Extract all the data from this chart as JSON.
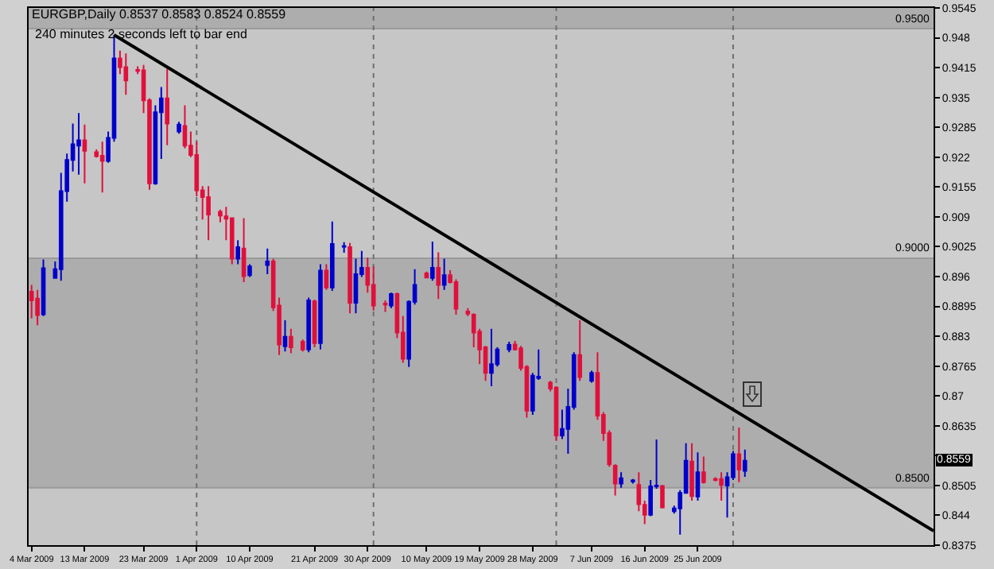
{
  "chart_data": {
    "type": "candlestick",
    "title": "EURGBP,Daily 0.8537 0.8583 0.8524 0.8559",
    "subtitle": "240 minutes 2 seconds left to bar end",
    "series": [
      {
        "x": [
          "2009-03-04",
          "2009-03-05",
          "2009-03-06",
          "2009-03-08",
          "2009-03-09",
          "2009-03-10",
          "2009-03-11",
          "2009-03-12",
          "2009-03-13",
          "2009-03-15",
          "2009-03-16",
          "2009-03-17",
          "2009-03-18",
          "2009-03-19",
          "2009-03-20",
          "2009-03-22",
          "2009-03-23",
          "2009-03-24",
          "2009-03-25",
          "2009-03-26",
          "2009-03-27",
          "2009-03-29",
          "2009-03-30",
          "2009-03-31",
          "2009-04-01",
          "2009-04-02",
          "2009-04-03",
          "2009-04-05",
          "2009-04-06",
          "2009-04-07",
          "2009-04-08",
          "2009-04-09",
          "2009-04-10",
          "2009-04-13",
          "2009-04-14",
          "2009-04-15",
          "2009-04-16",
          "2009-04-17",
          "2009-04-19",
          "2009-04-20",
          "2009-04-21",
          "2009-04-22",
          "2009-04-23",
          "2009-04-24",
          "2009-04-26",
          "2009-04-27",
          "2009-04-28",
          "2009-04-29",
          "2009-04-30",
          "2009-05-01",
          "2009-05-03",
          "2009-05-04",
          "2009-05-05",
          "2009-05-06",
          "2009-05-07",
          "2009-05-08",
          "2009-05-10",
          "2009-05-11",
          "2009-05-12",
          "2009-05-13",
          "2009-05-14",
          "2009-05-15",
          "2009-05-17",
          "2009-05-18",
          "2009-05-19",
          "2009-05-20",
          "2009-05-21",
          "2009-05-22",
          "2009-05-24",
          "2009-05-25",
          "2009-05-26",
          "2009-05-27",
          "2009-05-28",
          "2009-05-29",
          "2009-05-31",
          "2009-06-01",
          "2009-06-02",
          "2009-06-03",
          "2009-06-04",
          "2009-06-05",
          "2009-06-07",
          "2009-06-08",
          "2009-06-09",
          "2009-06-10",
          "2009-06-11",
          "2009-06-12",
          "2009-06-14",
          "2009-06-15",
          "2009-06-16",
          "2009-06-17",
          "2009-06-18",
          "2009-06-19",
          "2009-06-21",
          "2009-06-22",
          "2009-06-23",
          "2009-06-24",
          "2009-06-25",
          "2009-06-26",
          "2009-06-28",
          "2009-06-29",
          "2009-06-30",
          "2009-07-01",
          "2009-07-02",
          "2009-07-03"
        ],
        "ohlc": [
          [
            0.8927,
            0.8942,
            0.8869,
            0.8908
          ],
          [
            0.8912,
            0.8931,
            0.8854,
            0.8876
          ],
          [
            0.8878,
            0.8997,
            0.8874,
            0.8978
          ],
          [
            0.8957,
            0.8993,
            0.8956,
            0.8976
          ],
          [
            0.8976,
            0.9186,
            0.8951,
            0.9146
          ],
          [
            0.9146,
            0.9228,
            0.9123,
            0.9214
          ],
          [
            0.9214,
            0.9293,
            0.9189,
            0.9248
          ],
          [
            0.9245,
            0.9316,
            0.9182,
            0.9257
          ],
          [
            0.9257,
            0.9291,
            0.9163,
            0.9234
          ],
          [
            0.9231,
            0.9237,
            0.9219,
            0.9222
          ],
          [
            0.9223,
            0.9254,
            0.9143,
            0.9212
          ],
          [
            0.9212,
            0.9276,
            0.9208,
            0.9262
          ],
          [
            0.9262,
            0.9486,
            0.9254,
            0.9435
          ],
          [
            0.9435,
            0.9452,
            0.9401,
            0.9416
          ],
          [
            0.9416,
            0.9446,
            0.9356,
            0.9387
          ],
          [
            0.941,
            0.9418,
            0.9401,
            0.9408
          ],
          [
            0.9409,
            0.9421,
            0.9316,
            0.9344
          ],
          [
            0.9344,
            0.9348,
            0.9149,
            0.9163
          ],
          [
            0.9163,
            0.9333,
            0.916,
            0.9318
          ],
          [
            0.9318,
            0.9373,
            0.9216,
            0.9348
          ],
          [
            0.9348,
            0.9412,
            0.9246,
            0.9293
          ],
          [
            0.9276,
            0.9297,
            0.9271,
            0.9291
          ],
          [
            0.9288,
            0.9333,
            0.9239,
            0.9245
          ],
          [
            0.9245,
            0.9276,
            0.922,
            0.9225
          ],
          [
            0.9225,
            0.9254,
            0.9135,
            0.9148
          ],
          [
            0.9148,
            0.9157,
            0.9084,
            0.9133
          ],
          [
            0.9133,
            0.9157,
            0.9039,
            0.9095
          ],
          [
            0.9101,
            0.9106,
            0.9078,
            0.9093
          ],
          [
            0.9091,
            0.9112,
            0.9039,
            0.9086
          ],
          [
            0.9087,
            0.9089,
            0.8987,
            0.8999
          ],
          [
            0.8999,
            0.9039,
            0.8987,
            0.9024
          ],
          [
            0.9021,
            0.9087,
            0.8948,
            0.8961
          ],
          [
            0.8963,
            0.8987,
            0.8959,
            0.8982
          ],
          [
            0.8985,
            0.9021,
            0.8965,
            0.8993
          ],
          [
            0.8993,
            0.8999,
            0.8885,
            0.8893
          ],
          [
            0.8897,
            0.8914,
            0.8789,
            0.8812
          ],
          [
            0.8808,
            0.8865,
            0.8797,
            0.8829
          ],
          [
            0.8829,
            0.8846,
            0.8793,
            0.8806
          ],
          [
            0.8818,
            0.8823,
            0.8797,
            0.8801
          ],
          [
            0.8801,
            0.8914,
            0.8795,
            0.8908
          ],
          [
            0.8906,
            0.891,
            0.8806,
            0.8815
          ],
          [
            0.8815,
            0.8987,
            0.8801,
            0.8973
          ],
          [
            0.8973,
            0.8987,
            0.8931,
            0.8936
          ],
          [
            0.8936,
            0.908,
            0.8929,
            0.9031
          ],
          [
            0.9025,
            0.9035,
            0.9012,
            0.9026
          ],
          [
            0.9024,
            0.9033,
            0.888,
            0.8903
          ],
          [
            0.8903,
            0.8999,
            0.888,
            0.8965
          ],
          [
            0.8965,
            0.9016,
            0.8959,
            0.8979
          ],
          [
            0.8979,
            0.9001,
            0.8925,
            0.8942
          ],
          [
            0.8942,
            0.8982,
            0.8886,
            0.8897
          ],
          [
            0.8901,
            0.8908,
            0.8883,
            0.8899
          ],
          [
            0.8897,
            0.8925,
            0.8891,
            0.8922
          ],
          [
            0.8922,
            0.8925,
            0.8826,
            0.8838
          ],
          [
            0.8838,
            0.8874,
            0.8772,
            0.8781
          ],
          [
            0.8781,
            0.8908,
            0.8763,
            0.8905
          ],
          [
            0.8905,
            0.8976,
            0.8899,
            0.8942
          ],
          [
            0.8967,
            0.8971,
            0.8956,
            0.8958
          ],
          [
            0.8957,
            0.9036,
            0.8951,
            0.8979
          ],
          [
            0.8979,
            0.9013,
            0.8911,
            0.8942
          ],
          [
            0.8942,
            0.8999,
            0.8931,
            0.8963
          ],
          [
            0.8963,
            0.8974,
            0.8945,
            0.8948
          ],
          [
            0.8948,
            0.8954,
            0.8877,
            0.889
          ],
          [
            0.8884,
            0.8891,
            0.8874,
            0.8879
          ],
          [
            0.8877,
            0.888,
            0.8806,
            0.8838
          ],
          [
            0.884,
            0.8846,
            0.8769,
            0.8801
          ],
          [
            0.8806,
            0.8809,
            0.8733,
            0.875
          ],
          [
            0.875,
            0.8846,
            0.8721,
            0.8769
          ],
          [
            0.8769,
            0.8806,
            0.8764,
            0.8801
          ],
          [
            0.8801,
            0.8818,
            0.8795,
            0.8811
          ],
          [
            0.8812,
            0.882,
            0.8799,
            0.8801
          ],
          [
            0.8804,
            0.8809,
            0.8755,
            0.8761
          ],
          [
            0.8763,
            0.8767,
            0.8653,
            0.8668
          ],
          [
            0.8668,
            0.875,
            0.8659,
            0.8744
          ],
          [
            0.8739,
            0.8801,
            0.8735,
            0.8742
          ],
          [
            0.8729,
            0.8733,
            0.871,
            0.8716
          ],
          [
            0.8718,
            0.8721,
            0.8602,
            0.8614
          ],
          [
            0.8614,
            0.867,
            0.8606,
            0.8628
          ],
          [
            0.8628,
            0.8716,
            0.8574,
            0.8676
          ],
          [
            0.8676,
            0.8795,
            0.867,
            0.8789
          ],
          [
            0.8789,
            0.8865,
            0.8733,
            0.8741
          ],
          [
            0.8733,
            0.8755,
            0.8729,
            0.875
          ],
          [
            0.875,
            0.8795,
            0.8648,
            0.8657
          ],
          [
            0.8659,
            0.8665,
            0.8602,
            0.8619
          ],
          [
            0.8619,
            0.8625,
            0.8546,
            0.8551
          ],
          [
            0.8548,
            0.8551,
            0.8483,
            0.8509
          ],
          [
            0.8509,
            0.8534,
            0.85,
            0.8521
          ],
          [
            0.8514,
            0.8519,
            0.8509,
            0.8516
          ],
          [
            0.8506,
            0.8534,
            0.8449,
            0.8464
          ],
          [
            0.8463,
            0.8472,
            0.8421,
            0.8441
          ],
          [
            0.8441,
            0.8517,
            0.8438,
            0.8503
          ],
          [
            0.8503,
            0.8605,
            0.8498,
            0.8505
          ],
          [
            0.8504,
            0.8506,
            0.8455,
            0.8457
          ],
          [
            0.8449,
            0.8461,
            0.8444,
            0.8455
          ],
          [
            0.8455,
            0.8495,
            0.8398,
            0.8489
          ],
          [
            0.8489,
            0.8597,
            0.8487,
            0.8559
          ],
          [
            0.8557,
            0.8597,
            0.8472,
            0.8482
          ],
          [
            0.8481,
            0.8577,
            0.8472,
            0.8534
          ],
          [
            0.8534,
            0.8568,
            0.8509,
            0.8512
          ],
          [
            0.8519,
            0.8523,
            0.8514,
            0.8517
          ],
          [
            0.8519,
            0.8534,
            0.8472,
            0.8506
          ],
          [
            0.8505,
            0.8534,
            0.8435,
            0.8523
          ],
          [
            0.8523,
            0.858,
            0.8517,
            0.8573
          ],
          [
            0.8573,
            0.8631,
            0.8512,
            0.854
          ],
          [
            0.8537,
            0.8583,
            0.8524,
            0.8559
          ]
        ],
        "colors": [
          "#e0103c",
          "#e0103c",
          "#0000cc",
          "#0000cc",
          "#0000cc",
          "#0000cc",
          "#0000cc",
          "#0000cc",
          "#e0103c",
          "#e0103c",
          "#e0103c",
          "#0000cc",
          "#0000cc",
          "#e0103c",
          "#e0103c",
          "#e0103c",
          "#e0103c",
          "#e0103c",
          "#0000cc",
          "#0000cc",
          "#e0103c",
          "#0000cc",
          "#e0103c",
          "#e0103c",
          "#e0103c",
          "#e0103c",
          "#e0103c",
          "#e0103c",
          "#e0103c",
          "#e0103c",
          "#0000cc",
          "#e0103c",
          "#0000cc",
          "#0000cc",
          "#e0103c",
          "#e0103c",
          "#0000cc",
          "#e0103c",
          "#e0103c",
          "#0000cc",
          "#e0103c",
          "#0000cc",
          "#e0103c",
          "#0000cc",
          "#0000cc",
          "#e0103c",
          "#0000cc",
          "#0000cc",
          "#e0103c",
          "#e0103c",
          "#e0103c",
          "#0000cc",
          "#e0103c",
          "#e0103c",
          "#0000cc",
          "#0000cc",
          "#e0103c",
          "#0000cc",
          "#e0103c",
          "#0000cc",
          "#e0103c",
          "#e0103c",
          "#e0103c",
          "#e0103c",
          "#e0103c",
          "#e0103c",
          "#0000cc",
          "#0000cc",
          "#0000cc",
          "#e0103c",
          "#e0103c",
          "#e0103c",
          "#0000cc",
          "#0000cc",
          "#e0103c",
          "#e0103c",
          "#0000cc",
          "#0000cc",
          "#0000cc",
          "#e0103c",
          "#0000cc",
          "#e0103c",
          "#e0103c",
          "#e0103c",
          "#e0103c",
          "#0000cc",
          "#0000cc",
          "#e0103c",
          "#e0103c",
          "#0000cc",
          "#0000cc",
          "#e0103c",
          "#0000cc",
          "#0000cc",
          "#0000cc",
          "#e0103c",
          "#0000cc",
          "#e0103c",
          "#e0103c",
          "#e0103c",
          "#0000cc",
          "#0000cc",
          "#e0103c",
          "#0000cc"
        ]
      },
      {
        "type": "line",
        "x": [
          "2009-03-18",
          "2009-08-04"
        ],
        "values": [
          0.9486,
          0.8406
        ],
        "color": "#000000"
      }
    ],
    "xlim": [
      "2009-03-03T12:00",
      "2009-08-04"
    ],
    "xticks": [
      {
        "value": "2009-03-04",
        "label": "4 Mar 2009"
      },
      {
        "value": "2009-03-13",
        "label": "13 Mar 2009"
      },
      {
        "value": "2009-03-23",
        "label": "23 Mar 2009"
      },
      {
        "value": "2009-04-01",
        "label": "1 Apr 2009"
      },
      {
        "value": "2009-04-10",
        "label": "10 Apr 2009"
      },
      {
        "value": "2009-04-21",
        "label": "21 Apr 2009"
      },
      {
        "value": "2009-04-30",
        "label": "30 Apr 2009"
      },
      {
        "value": "2009-05-10",
        "label": "10 May 2009"
      },
      {
        "value": "2009-05-19",
        "label": "19 May 2009"
      },
      {
        "value": "2009-05-28",
        "label": "28 May 2009"
      },
      {
        "value": "2009-06-07",
        "label": "7 Jun 2009"
      },
      {
        "value": "2009-06-16",
        "label": "16 Jun 2009"
      },
      {
        "value": "2009-06-25",
        "label": "25 Jun 2009"
      }
    ],
    "ylim": [
      0.8375,
      0.9545
    ],
    "yticks": [
      0.9545,
      0.948,
      0.9415,
      0.935,
      0.9285,
      0.922,
      0.9155,
      0.909,
      0.9025,
      0.896,
      0.8895,
      0.883,
      0.8765,
      0.87,
      0.8635,
      {
        "value": 0.857,
        "label": null
      },
      0.8505,
      0.844,
      0.8375
    ],
    "bands": [
      {
        "axis": "y",
        "from": 0.85,
        "to": 0.9,
        "color": "#adadad"
      },
      {
        "axis": "y",
        "from": 0.95,
        "to": 0.9545,
        "color": "#adadad"
      }
    ],
    "ref_lines": [
      {
        "axis": "y",
        "value": 0.95,
        "label": "0.9500",
        "color": "#9a9a9a"
      },
      {
        "axis": "y",
        "value": 0.9,
        "label": "0.9000",
        "color": "#9a9a9a"
      },
      {
        "axis": "y",
        "value": 0.85,
        "label": "0.8500",
        "color": "#9a9a9a"
      },
      {
        "axis": "x",
        "value": "2009-04-01",
        "label": null,
        "color": "#707070",
        "line_style": "dotted"
      },
      {
        "axis": "x",
        "value": "2009-05-01",
        "label": null,
        "color": "#707070",
        "line_style": "dotted"
      },
      {
        "axis": "x",
        "value": "2009-06-01",
        "label": null,
        "color": "#707070",
        "line_style": "dotted"
      },
      {
        "axis": "x",
        "value": "2009-07-01",
        "label": null,
        "color": "#707070",
        "line_style": "dotted"
      }
    ],
    "annotations": [
      {
        "text": "0.8559",
        "y": 0.8559
      }
    ]
  }
}
